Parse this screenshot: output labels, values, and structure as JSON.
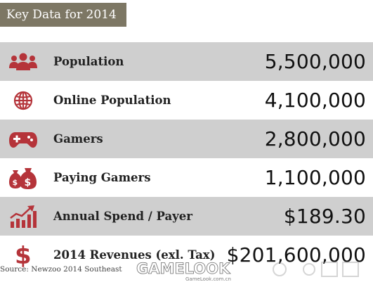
{
  "title": "Key Data for 2014",
  "colors": {
    "title_bg": "#7d7764",
    "row_shade": "#cfcfcf",
    "icon_red": "#b5343a",
    "text": "#222222"
  },
  "rows": [
    {
      "icon": "people-group-icon",
      "label": "Population",
      "value": "5,500,000",
      "shaded": true
    },
    {
      "icon": "globe-icon",
      "label": "Online Population",
      "value": "4,100,000",
      "shaded": false
    },
    {
      "icon": "gamepad-icon",
      "label": "Gamers",
      "value": "2,800,000",
      "shaded": true
    },
    {
      "icon": "money-bags-icon",
      "label": "Paying Gamers",
      "value": "1,100,000",
      "shaded": false
    },
    {
      "icon": "growth-chart-icon",
      "label": "Annual Spend / Payer",
      "value": "$189.30",
      "shaded": true
    },
    {
      "icon": "dollar-sign-icon",
      "label": "2014 Revenues (exl. Tax)",
      "value": "$201,600,000",
      "shaded": false
    }
  ],
  "source": "Source: Newzoo 2014 Southeast",
  "watermark": {
    "brand": "GAMELOOK",
    "sub": "GameLook.com.cn"
  }
}
